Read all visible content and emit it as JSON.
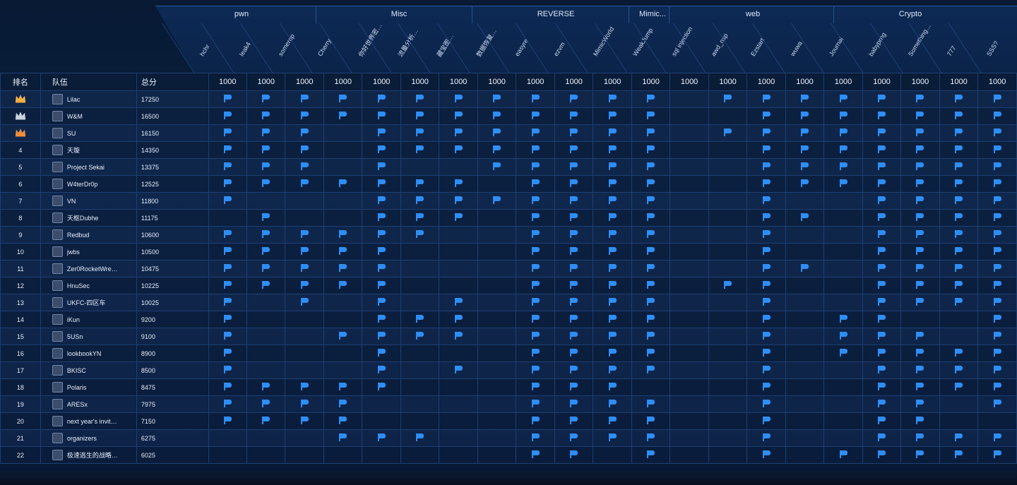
{
  "categories": [
    {
      "name": "pwn",
      "center": 342
    },
    {
      "name": "Misc",
      "center": 565
    },
    {
      "name": "REVERSE",
      "center": 787
    },
    {
      "name": "Mimic...",
      "center": 924
    },
    {
      "name": "web",
      "center": 1066
    },
    {
      "name": "Crypto",
      "center": 1289
    }
  ],
  "challenges": [
    "hchr",
    "leak4",
    "somerop",
    "Cherry",
    "你好世界密…",
    "流量分析…",
    "藏宝图…",
    "数据恢复…",
    "easyre",
    "ezvm",
    "MimicWorld",
    "WeakJump",
    "sql injection",
    "awd_nsp",
    "Ezstart",
    "wuwa",
    "Journal",
    "babyprng",
    "Something…",
    "777",
    "SSS?"
  ],
  "challenge_scores": [
    "1000",
    "1000",
    "1000",
    "1000",
    "1000",
    "1000",
    "1000",
    "1000",
    "1000",
    "1000",
    "1000",
    "1000",
    "1000",
    "1000",
    "1000",
    "1000",
    "1000",
    "1000",
    "1000",
    "1000",
    "1000"
  ],
  "columns": {
    "rank": "排名",
    "team": "队伍",
    "score": "总分"
  },
  "teams": [
    {
      "rank": "crown-gold",
      "name": "Lilac",
      "score": "17250",
      "solves": [
        1,
        1,
        1,
        1,
        1,
        1,
        1,
        1,
        1,
        1,
        1,
        1,
        0,
        1,
        1,
        1,
        1,
        1,
        1,
        1,
        1
      ]
    },
    {
      "rank": "crown-silver",
      "name": "W&M",
      "score": "16500",
      "solves": [
        1,
        1,
        1,
        1,
        1,
        1,
        1,
        1,
        1,
        1,
        1,
        1,
        0,
        0,
        1,
        1,
        1,
        1,
        1,
        1,
        1
      ]
    },
    {
      "rank": "crown-bronze",
      "name": "SU",
      "score": "16150",
      "solves": [
        1,
        1,
        1,
        0,
        1,
        1,
        1,
        1,
        1,
        1,
        1,
        1,
        0,
        1,
        1,
        1,
        1,
        1,
        1,
        1,
        1
      ]
    },
    {
      "rank": "4",
      "name": "天璇",
      "score": "14350",
      "solves": [
        1,
        1,
        1,
        0,
        1,
        1,
        1,
        1,
        1,
        1,
        1,
        1,
        0,
        0,
        1,
        1,
        1,
        1,
        1,
        1,
        1
      ]
    },
    {
      "rank": "5",
      "name": "Project Sekai",
      "score": "13375",
      "solves": [
        1,
        1,
        1,
        0,
        1,
        0,
        0,
        1,
        1,
        1,
        1,
        1,
        0,
        0,
        1,
        1,
        1,
        1,
        1,
        1,
        1
      ]
    },
    {
      "rank": "6",
      "name": "W4terDr0p",
      "score": "12525",
      "solves": [
        1,
        1,
        1,
        1,
        1,
        1,
        1,
        0,
        1,
        1,
        1,
        1,
        0,
        0,
        1,
        1,
        1,
        1,
        1,
        1,
        1
      ]
    },
    {
      "rank": "7",
      "name": "VN",
      "score": "11800",
      "solves": [
        1,
        0,
        0,
        0,
        1,
        1,
        1,
        1,
        1,
        1,
        1,
        1,
        0,
        0,
        1,
        0,
        0,
        1,
        1,
        1,
        1
      ]
    },
    {
      "rank": "8",
      "name": "天枢Dubhe",
      "score": "11175",
      "solves": [
        0,
        1,
        0,
        0,
        1,
        1,
        1,
        0,
        1,
        1,
        1,
        1,
        0,
        0,
        1,
        1,
        0,
        1,
        1,
        1,
        1
      ]
    },
    {
      "rank": "9",
      "name": "Redbud",
      "score": "10600",
      "solves": [
        1,
        1,
        1,
        1,
        1,
        1,
        0,
        0,
        1,
        1,
        1,
        1,
        0,
        0,
        1,
        0,
        0,
        1,
        1,
        1,
        1
      ]
    },
    {
      "rank": "10",
      "name": "jwbs",
      "score": "10500",
      "solves": [
        1,
        1,
        1,
        1,
        1,
        0,
        0,
        0,
        1,
        1,
        1,
        1,
        0,
        0,
        1,
        0,
        0,
        1,
        1,
        1,
        1
      ]
    },
    {
      "rank": "11",
      "name": "Zer0RocketWre…",
      "score": "10475",
      "solves": [
        1,
        1,
        1,
        1,
        1,
        0,
        0,
        0,
        1,
        1,
        1,
        1,
        0,
        0,
        1,
        1,
        0,
        1,
        1,
        1,
        1
      ]
    },
    {
      "rank": "12",
      "name": "HnuSec",
      "score": "10225",
      "solves": [
        1,
        1,
        1,
        1,
        1,
        0,
        0,
        0,
        1,
        1,
        1,
        1,
        0,
        1,
        1,
        0,
        0,
        1,
        1,
        1,
        1
      ]
    },
    {
      "rank": "13",
      "name": "UKFC-四区车",
      "score": "10025",
      "solves": [
        1,
        0,
        1,
        0,
        1,
        0,
        1,
        0,
        1,
        1,
        1,
        1,
        0,
        0,
        1,
        0,
        0,
        1,
        1,
        1,
        1
      ]
    },
    {
      "rank": "14",
      "name": "iKun",
      "score": "9200",
      "solves": [
        1,
        0,
        0,
        0,
        1,
        1,
        1,
        0,
        1,
        1,
        1,
        1,
        0,
        0,
        1,
        0,
        1,
        1,
        0,
        0,
        1
      ]
    },
    {
      "rank": "15",
      "name": "5USn",
      "score": "9100",
      "solves": [
        1,
        0,
        0,
        1,
        1,
        1,
        1,
        0,
        1,
        1,
        1,
        1,
        0,
        0,
        1,
        0,
        1,
        1,
        1,
        0,
        1
      ]
    },
    {
      "rank": "16",
      "name": "lookbookYN",
      "score": "8900",
      "solves": [
        1,
        0,
        0,
        0,
        1,
        0,
        0,
        0,
        1,
        1,
        1,
        1,
        0,
        0,
        1,
        0,
        1,
        1,
        1,
        1,
        1
      ]
    },
    {
      "rank": "17",
      "name": "BKISC",
      "score": "8500",
      "solves": [
        1,
        0,
        0,
        0,
        1,
        0,
        1,
        0,
        1,
        1,
        1,
        1,
        0,
        0,
        1,
        0,
        0,
        1,
        1,
        1,
        1
      ]
    },
    {
      "rank": "18",
      "name": "Polaris",
      "score": "8475",
      "solves": [
        1,
        1,
        1,
        1,
        1,
        0,
        0,
        0,
        1,
        1,
        1,
        0,
        0,
        0,
        1,
        0,
        0,
        1,
        1,
        1,
        1
      ]
    },
    {
      "rank": "19",
      "name": "ARESx",
      "score": "7975",
      "solves": [
        1,
        1,
        1,
        1,
        0,
        0,
        0,
        0,
        1,
        1,
        1,
        1,
        0,
        0,
        1,
        0,
        0,
        1,
        1,
        0,
        1
      ]
    },
    {
      "rank": "20",
      "name": "next year's invit…",
      "score": "7150",
      "solves": [
        1,
        1,
        1,
        1,
        0,
        0,
        0,
        0,
        1,
        1,
        1,
        1,
        0,
        0,
        1,
        0,
        0,
        1,
        1,
        0,
        0
      ]
    },
    {
      "rank": "21",
      "name": "organizers",
      "score": "6275",
      "solves": [
        0,
        0,
        0,
        1,
        1,
        1,
        0,
        0,
        1,
        1,
        1,
        1,
        0,
        0,
        1,
        0,
        0,
        1,
        1,
        1,
        1
      ]
    },
    {
      "rank": "22",
      "name": "极速逃生的战略…",
      "score": "6025",
      "solves": [
        0,
        0,
        0,
        0,
        0,
        0,
        0,
        0,
        1,
        1,
        0,
        1,
        0,
        0,
        1,
        0,
        1,
        1,
        1,
        1,
        1
      ]
    }
  ],
  "colors": {
    "flag": "#2f8ef5",
    "gold": "#f5b041",
    "silver": "#c9d2de",
    "bronze": "#f08c3a"
  }
}
